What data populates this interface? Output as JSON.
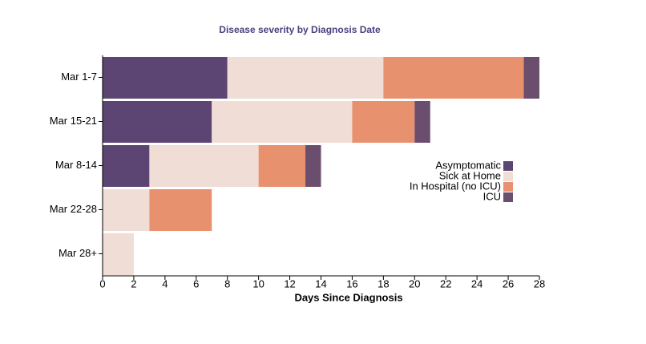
{
  "chart_data": {
    "type": "stacked-bar-horizontal",
    "title": "Disease severity by Diagnosis Date",
    "x_label": "Days Since Diagnosis",
    "categories": [
      "Mar 1-7",
      "Mar 15-21",
      "Mar 8-14",
      "Mar 22-28",
      "Mar 28+"
    ],
    "series": [
      {
        "name": "Asymptomatic",
        "color": "#5d4573",
        "values": [
          8,
          7,
          3,
          0,
          0
        ]
      },
      {
        "name": "Sick at Home",
        "color": "#f0ddd5",
        "values": [
          10,
          9,
          7,
          3,
          2
        ]
      },
      {
        "name": "In Hospital (no ICU)",
        "color": "#e8916f",
        "values": [
          9,
          4,
          3,
          4,
          0
        ]
      },
      {
        "name": "ICU",
        "color": "#6b4d6e",
        "values": [
          1,
          1,
          1,
          0,
          0
        ]
      }
    ],
    "xlim": [
      0,
      28
    ],
    "xticks": [
      0,
      2,
      4,
      6,
      8,
      10,
      12,
      14,
      16,
      18,
      20,
      22,
      24,
      26,
      28
    ],
    "legend": "right"
  }
}
